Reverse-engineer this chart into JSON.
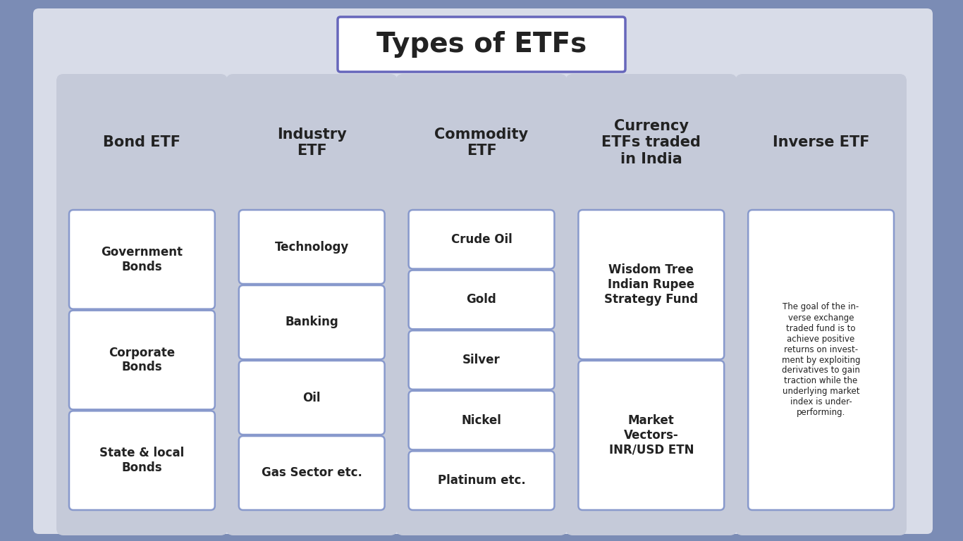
{
  "title": "Types of ETFs",
  "title_fontsize": 28,
  "background_color": "#7B8CB5",
  "main_bg_color": "#D8DCE8",
  "card_bg_color": "#FFFFFF",
  "column_bg_color": "#C5CAD9",
  "title_box_color": "#FFFFFF",
  "title_border_color": "#6666BB",
  "text_color": "#222222",
  "header_fontsize": 15,
  "item_fontsize_default": 12,
  "item_fontsize_currency": 12,
  "item_fontsize_inverse": 8.5,
  "columns": [
    {
      "header": "Bond ETF",
      "items": [
        "Government\nBonds",
        "Corporate\nBonds",
        "State & local\nBonds"
      ]
    },
    {
      "header": "Industry\nETF",
      "items": [
        "Technology",
        "Banking",
        "Oil",
        "Gas Sector etc."
      ]
    },
    {
      "header": "Commodity\nETF",
      "items": [
        "Crude Oil",
        "Gold",
        "Silver",
        "Nickel",
        "Platinum etc."
      ]
    },
    {
      "header": "Currency\nETFs traded\nin India",
      "items": [
        "Wisdom Tree\nIndian Rupee\nStrategy Fund",
        "Market\nVectors-\nINR/USD ETN"
      ]
    },
    {
      "header": "Inverse ETF",
      "items": [
        "The goal of the in-\nverse exchange\ntraded fund is to\nachieve positive\nreturns on invest-\nment by exploiting\nderivatives to gain\ntraction while the\nunderlying market\nindex is under-\nperforming."
      ]
    }
  ]
}
